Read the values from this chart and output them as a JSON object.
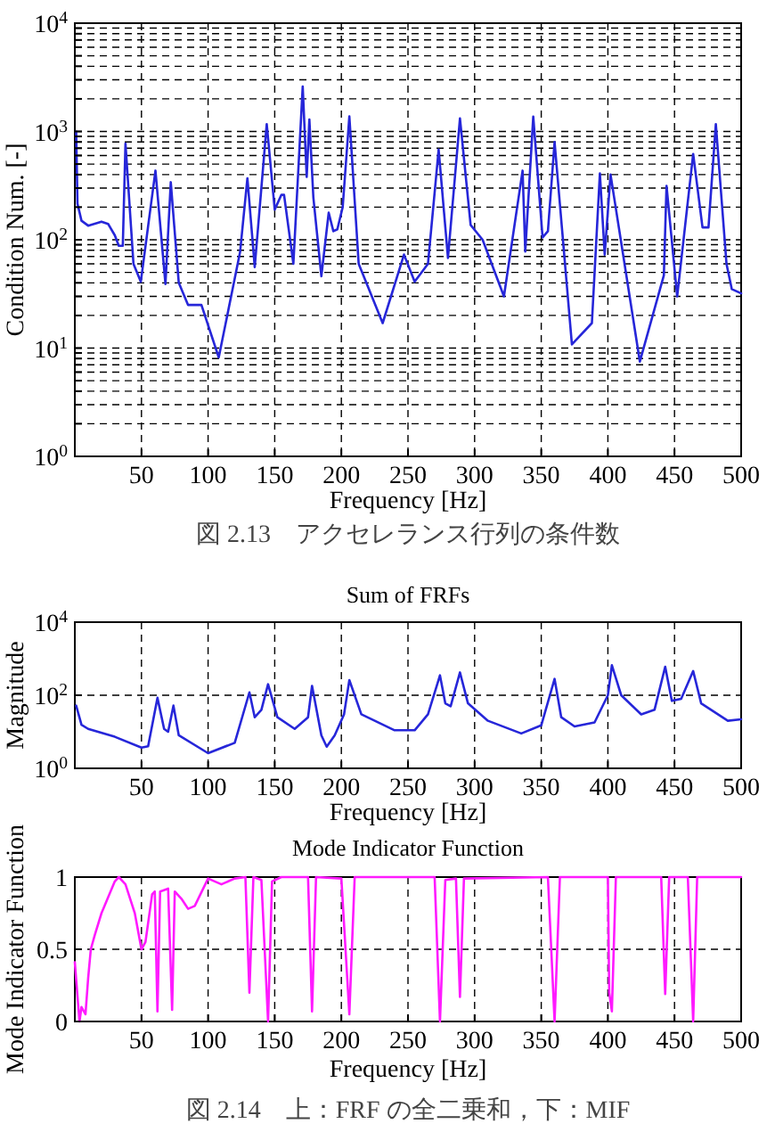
{
  "chart_data": [
    {
      "type": "line",
      "xlabel": "Frequency [Hz]",
      "ylabel": "Condition Num. [-]",
      "annotations": [
        "図 2.13　アクセレランス行列の条件数"
      ],
      "log": "y",
      "grid": true,
      "xlim": [
        0,
        500
      ],
      "xticks": [
        50,
        100,
        150,
        200,
        250,
        300,
        350,
        400,
        450,
        500
      ],
      "ylim": [
        1,
        10000
      ],
      "yticks": [
        {
          "value": 1,
          "label": "10$^{0}$"
        },
        {
          "value": 2,
          "label": null
        },
        {
          "value": 3,
          "label": null
        },
        {
          "value": 4,
          "label": null
        },
        {
          "value": 5,
          "label": null
        },
        {
          "value": 6,
          "label": null
        },
        {
          "value": 7,
          "label": null
        },
        {
          "value": 8,
          "label": null
        },
        {
          "value": 9,
          "label": null
        },
        {
          "value": 10,
          "label": "10$^{1}$"
        },
        {
          "value": 20,
          "label": null
        },
        {
          "value": 30,
          "label": null
        },
        {
          "value": 40,
          "label": null
        },
        {
          "value": 50,
          "label": null
        },
        {
          "value": 60,
          "label": null
        },
        {
          "value": 70,
          "label": null
        },
        {
          "value": 80,
          "label": null
        },
        {
          "value": 90,
          "label": null
        },
        {
          "value": 100,
          "label": "10$^{2}$"
        },
        {
          "value": 200,
          "label": null
        },
        {
          "value": 300,
          "label": null
        },
        {
          "value": 400,
          "label": null
        },
        {
          "value": 500,
          "label": null
        },
        {
          "value": 600,
          "label": null
        },
        {
          "value": 700,
          "label": null
        },
        {
          "value": 800,
          "label": null
        },
        {
          "value": 900,
          "label": null
        },
        {
          "value": 1000,
          "label": "10$^{3}$"
        },
        {
          "value": 2000,
          "label": null
        },
        {
          "value": 3000,
          "label": null
        },
        {
          "value": 4000,
          "label": null
        },
        {
          "value": 5000,
          "label": null
        },
        {
          "value": 6000,
          "label": null
        },
        {
          "value": 7000,
          "label": null
        },
        {
          "value": 8000,
          "label": null
        },
        {
          "value": 9000,
          "label": null
        },
        {
          "value": 10000,
          "label": "10$^{4}$"
        }
      ],
      "series": [
        {
          "color": "#2626d9",
          "x": [
            1,
            2,
            5,
            10,
            20,
            25,
            30,
            33,
            36,
            38,
            44,
            49.5,
            60.5,
            68,
            72,
            78,
            85,
            95,
            108,
            124,
            129.5,
            135,
            144,
            150,
            155,
            157,
            164,
            171,
            174,
            176,
            179,
            185,
            190.5,
            194,
            197,
            201,
            206,
            213,
            231,
            247,
            255,
            265,
            273,
            280,
            289,
            297,
            306,
            322,
            336,
            338,
            344,
            351,
            355,
            360,
            373,
            388,
            394,
            397.6,
            402,
            424,
            442,
            444,
            452,
            464,
            471,
            475.5,
            481,
            489,
            493,
            500
          ],
          "values": [
            1000,
            215,
            150,
            135,
            147,
            140,
            110,
            88,
            88,
            775,
            60,
            41,
            435,
            39,
            340,
            40,
            25,
            25,
            8.2,
            77,
            370,
            56,
            1170,
            190,
            260,
            260,
            60,
            2600,
            380,
            1290,
            245,
            46,
            178,
            120,
            125,
            200,
            1380,
            60,
            17,
            73,
            41,
            60,
            680,
            68,
            1320,
            137,
            100,
            30,
            435,
            78,
            1370,
            105,
            120,
            800,
            10.8,
            17,
            410,
            73,
            400,
            7.5,
            47,
            315,
            30,
            620,
            130,
            130,
            1170,
            60,
            35,
            32
          ]
        }
      ]
    },
    {
      "type": "line",
      "title": "Sum of FRFs",
      "xlabel": "Frequency [Hz]",
      "ylabel": "Magnitude",
      "log": "y",
      "grid": true,
      "xlim": [
        0,
        500
      ],
      "xticks": [
        50,
        100,
        150,
        200,
        250,
        300,
        350,
        400,
        450,
        500
      ],
      "ylim": [
        1,
        10000
      ],
      "yticks": [
        {
          "value": 1,
          "label": "10$^{0}$"
        },
        {
          "value": 100,
          "label": "10$^{2}$"
        },
        {
          "value": 10000,
          "label": "10$^{4}$"
        }
      ],
      "series": [
        {
          "color": "#2626d9",
          "x": [
            1,
            5,
            10,
            30,
            50,
            55,
            62,
            67,
            70,
            74,
            78,
            100,
            120,
            131,
            135,
            140,
            145,
            152,
            165,
            175,
            178,
            185,
            189,
            195,
            202,
            206,
            215,
            240,
            255,
            265,
            274,
            278,
            282,
            289,
            295,
            310,
            335,
            350,
            360,
            365,
            375,
            390,
            400,
            403,
            410,
            425,
            435,
            443,
            448,
            455,
            464,
            470,
            490,
            500
          ],
          "values": [
            52,
            15.6,
            12,
            7.3,
            3.7,
            4,
            85,
            12,
            10,
            52,
            8,
            2.6,
            5,
            120,
            25,
            40,
            200,
            25,
            12,
            25,
            180,
            8,
            3.9,
            8,
            30,
            260,
            30,
            11,
            11,
            30,
            350,
            60,
            50,
            420,
            60,
            20,
            9,
            15,
            280,
            25,
            14,
            18,
            100,
            660,
            100,
            30,
            40,
            600,
            70,
            80,
            460,
            60,
            20,
            22
          ]
        }
      ]
    },
    {
      "type": "line",
      "title": "Mode Indicator Function",
      "xlabel": "Frequency [Hz]",
      "ylabel": "Mode Indicator Function",
      "annotations": [
        "図 2.14　上：FRF の全二乗和，下：MIF"
      ],
      "grid": true,
      "xlim": [
        0,
        500
      ],
      "xticks": [
        50,
        100,
        150,
        200,
        250,
        300,
        350,
        400,
        450,
        500
      ],
      "ylim": [
        0,
        1
      ],
      "yticks": [
        0,
        0.5,
        1
      ],
      "series": [
        {
          "color": "#ff1aff",
          "x": [
            0,
            3.5,
            5,
            8,
            10,
            12,
            15,
            20,
            30,
            33,
            38,
            45,
            50,
            53,
            58,
            60,
            62,
            64,
            70,
            73,
            75,
            80,
            85,
            90,
            100,
            110,
            120,
            128,
            131,
            134,
            140,
            145,
            148,
            155,
            175,
            178,
            181,
            200,
            206,
            210,
            270,
            274,
            278,
            286,
            289,
            292,
            355,
            360,
            364,
            400,
            401,
            403,
            406,
            440,
            443,
            446,
            460,
            464,
            467,
            500
          ],
          "values": [
            0.41,
            0,
            0.1,
            0.05,
            0.3,
            0.5,
            0.6,
            0.75,
            0.97,
            1,
            0.95,
            0.75,
            0.5,
            0.55,
            0.88,
            0.9,
            0.07,
            0.9,
            0.92,
            0.08,
            0.9,
            0.85,
            0.78,
            0.8,
            0.99,
            0.95,
            0.99,
            1,
            0.2,
            1,
            0.98,
            0,
            0.97,
            1,
            1,
            0.07,
            1,
            0.99,
            0.05,
            1,
            1,
            0,
            0.98,
            0.99,
            0.17,
            0.99,
            1,
            0,
            1,
            1,
            0.2,
            0.07,
            1,
            1,
            0.19,
            1,
            1,
            0,
            1,
            1
          ]
        }
      ]
    }
  ]
}
